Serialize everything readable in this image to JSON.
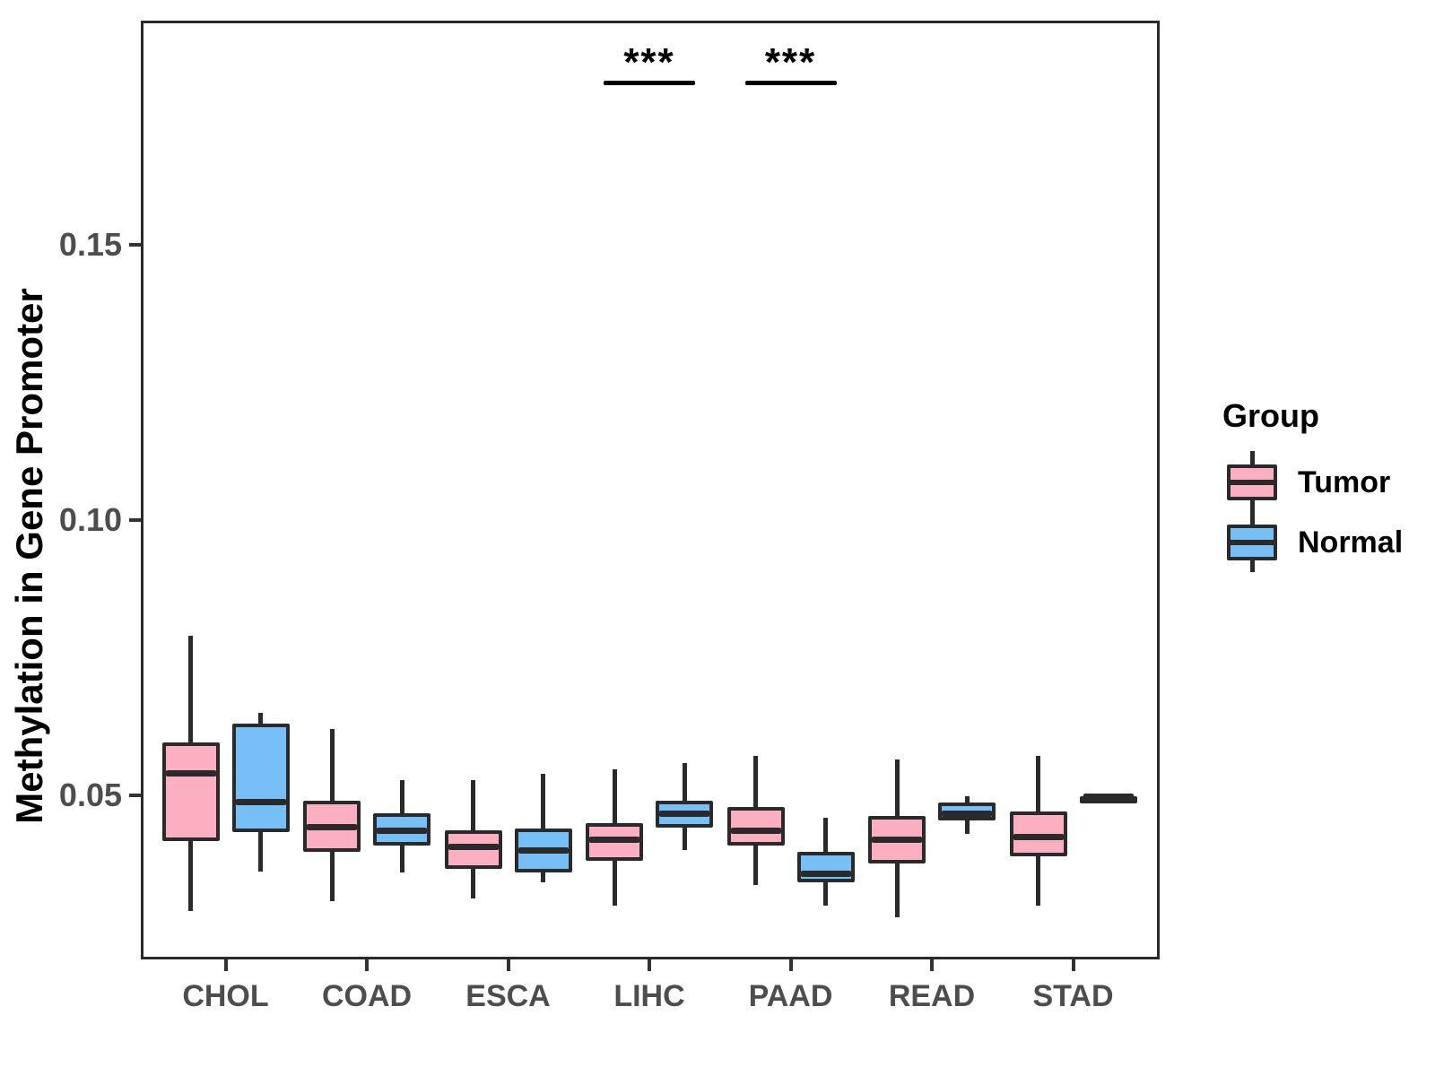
{
  "figure": {
    "background": "#FFFFFF"
  },
  "chart_data": {
    "type": "boxplot",
    "title": "",
    "ylabel": "Methylation in Gene Promoter",
    "xlabel": "",
    "yticks": [
      0.05,
      0.1,
      0.15
    ],
    "ylim": [
      0.0202,
      0.1907
    ],
    "grid": false,
    "categories": [
      "CHOL",
      "COAD",
      "ESCA",
      "LIHC",
      "PAAD",
      "READ",
      "STAD"
    ],
    "series": [
      {
        "name": "Tumor",
        "color": "#FCAFC0",
        "boxes": [
          {
            "whisker_low": 0.029,
            "q1": 0.0417,
            "median": 0.054,
            "q3": 0.0596,
            "whisker_high": 0.079
          },
          {
            "whisker_low": 0.0308,
            "q1": 0.0397,
            "median": 0.0443,
            "q3": 0.049,
            "whisker_high": 0.062
          },
          {
            "whisker_low": 0.0313,
            "q1": 0.0366,
            "median": 0.0406,
            "q3": 0.0436,
            "whisker_high": 0.0528
          },
          {
            "whisker_low": 0.03,
            "q1": 0.0381,
            "median": 0.0419,
            "q3": 0.045,
            "whisker_high": 0.0547
          },
          {
            "whisker_low": 0.0337,
            "q1": 0.0409,
            "median": 0.0435,
            "q3": 0.0479,
            "whisker_high": 0.0572
          },
          {
            "whisker_low": 0.0279,
            "q1": 0.0376,
            "median": 0.0419,
            "q3": 0.0463,
            "whisker_high": 0.0565
          },
          {
            "whisker_low": 0.03,
            "q1": 0.0389,
            "median": 0.0425,
            "q3": 0.0471,
            "whisker_high": 0.0572
          }
        ]
      },
      {
        "name": "Normal",
        "color": "#77C0F7",
        "boxes": [
          {
            "whisker_low": 0.0362,
            "q1": 0.0433,
            "median": 0.0487,
            "q3": 0.063,
            "whisker_high": 0.065
          },
          {
            "whisker_low": 0.036,
            "q1": 0.0409,
            "median": 0.0435,
            "q3": 0.0467,
            "whisker_high": 0.0528
          },
          {
            "whisker_low": 0.0342,
            "q1": 0.036,
            "median": 0.04,
            "q3": 0.044,
            "whisker_high": 0.0539
          },
          {
            "whisker_low": 0.04,
            "q1": 0.0441,
            "median": 0.0467,
            "q3": 0.049,
            "whisker_high": 0.0559
          },
          {
            "whisker_low": 0.03,
            "q1": 0.0342,
            "median": 0.0357,
            "q3": 0.0397,
            "whisker_high": 0.0459
          },
          {
            "whisker_low": 0.043,
            "q1": 0.0455,
            "median": 0.0466,
            "q3": 0.0487,
            "whisker_high": 0.0498
          },
          {
            "whisker_low": 0.0498,
            "q1": 0.0498,
            "median": 0.0498,
            "q3": 0.0498,
            "whisker_high": 0.0498
          }
        ]
      }
    ],
    "significance": [
      {
        "category": "LIHC",
        "label": "***"
      },
      {
        "category": "PAAD",
        "label": "***"
      }
    ],
    "legend": {
      "title": "Group",
      "position": "right",
      "entries": [
        "Tumor",
        "Normal"
      ]
    },
    "styles": {
      "box_border": "#2A2A2A",
      "axis_text": "#4D4D4D",
      "title_text": "#000000",
      "annotation": "#000000"
    }
  }
}
